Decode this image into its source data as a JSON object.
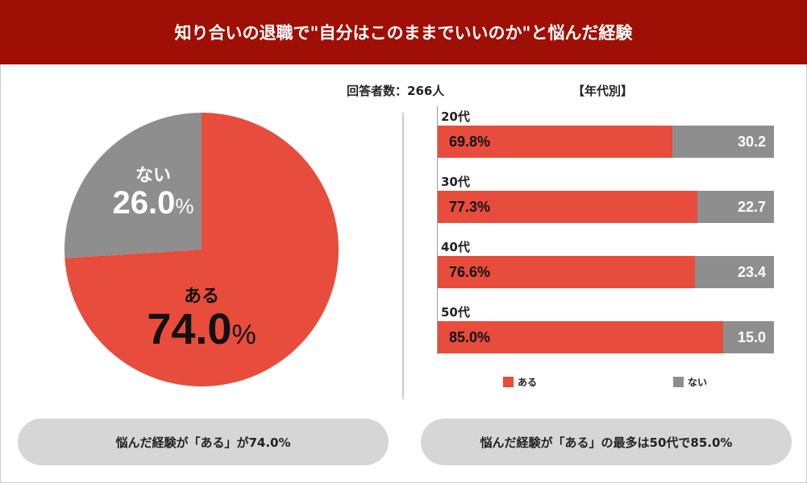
{
  "title": "知り合いの退職で\"自分はこのままでいいのか\"と悩んだ経験",
  "respondents": "回答者数：266人",
  "chart_data": [
    {
      "type": "pie",
      "slices": [
        {
          "label": "ある",
          "value": 74.0,
          "display": "74.0",
          "color": "#e74c3c"
        },
        {
          "label": "ない",
          "value": 26.0,
          "display": "26.0",
          "color": "#8e8e8e"
        }
      ],
      "unit": "%"
    },
    {
      "type": "bar",
      "stacked": true,
      "orientation": "horizontal",
      "title": "【年代別】",
      "categories": [
        "20代",
        "30代",
        "40代",
        "50代"
      ],
      "series": [
        {
          "name": "ある",
          "values": [
            69.8,
            77.3,
            76.6,
            85.0
          ],
          "labels": [
            "69.8%",
            "77.3%",
            "76.6%",
            "85.0%"
          ],
          "color": "#e74c3c"
        },
        {
          "name": "ない",
          "values": [
            30.2,
            22.7,
            23.4,
            15.0
          ],
          "labels": [
            "30.2",
            "22.7",
            "23.4",
            "15.0"
          ],
          "color": "#8e8e8e"
        }
      ],
      "legend": "bottom"
    }
  ],
  "summary": {
    "left": "悩んだ経験が「ある」が74.0%",
    "right": "悩んだ経験が「ある」の最多は50代で85.0%"
  }
}
